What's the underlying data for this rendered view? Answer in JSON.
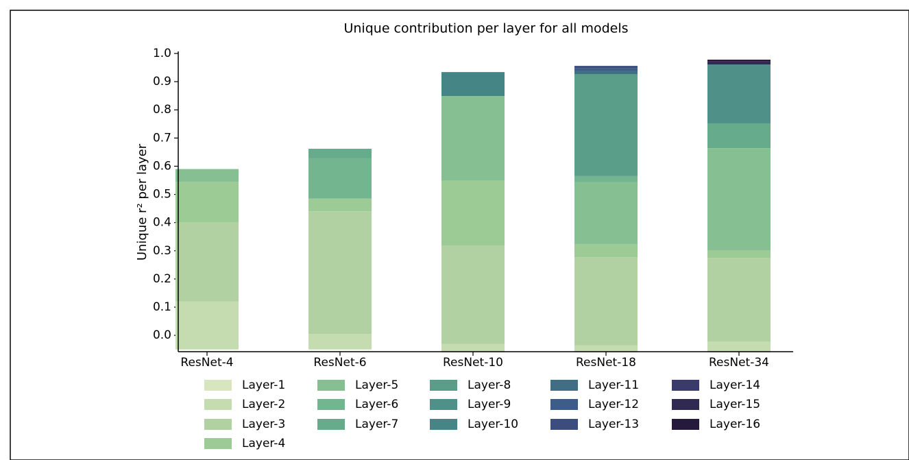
{
  "chart_data": {
    "type": "stacked_bar",
    "title": "Unique contribution per layer for all models",
    "y_label": "Unique r² per layer",
    "categories": [
      "ResNet-4",
      "ResNet-6",
      "ResNet-10",
      "ResNet-18",
      "ResNet-34"
    ],
    "ylim": [
      -0.058,
      1.0
    ],
    "yticks": [
      {
        "value": 0,
        "label": "0.0"
      },
      0.1,
      0.2,
      0.3,
      0.4,
      0.5,
      0.6,
      0.7,
      0.8,
      0.9,
      {
        "value": 1,
        "label": "1.0"
      }
    ],
    "series": [
      {
        "name": "Layer-1",
        "color": "#d8e6c0",
        "values": [
          -0.05,
          -0.05,
          -0.06,
          -0.06,
          -0.06
        ]
      },
      {
        "name": "Layer-2",
        "color": "#c5dcb0",
        "values": [
          0.17,
          0.055,
          0.03,
          0.025,
          0.038
        ]
      },
      {
        "name": "Layer-3",
        "color": "#b1d1a2",
        "values": [
          0.28,
          0.435,
          0.348,
          0.312,
          0.297
        ]
      },
      {
        "name": "Layer-4",
        "color": "#9ccb96",
        "values": [
          0.145,
          0.045,
          0.23,
          0.047,
          0.027
        ]
      },
      {
        "name": "Layer-5",
        "color": "#86c092",
        "values": [
          0.045,
          0,
          0.301,
          0.219,
          0.362
        ]
      },
      {
        "name": "Layer-6",
        "color": "#73b58e",
        "values": [
          0,
          0.143,
          0,
          0.022,
          0
        ]
      },
      {
        "name": "Layer-7",
        "color": "#66ab8b",
        "values": [
          0,
          0.034,
          0,
          0,
          0.088
        ]
      },
      {
        "name": "Layer-8",
        "color": "#5a9e89",
        "values": [
          0,
          0,
          0,
          0.362,
          0
        ]
      },
      {
        "name": "Layer-9",
        "color": "#4f9188",
        "values": [
          0,
          0,
          0,
          0,
          0.209
        ]
      },
      {
        "name": "Layer-10",
        "color": "#468586",
        "values": [
          0,
          0,
          0.085,
          0,
          0
        ]
      },
      {
        "name": "Layer-11",
        "color": "#3f6e85",
        "values": [
          0,
          0,
          0,
          0.01,
          0
        ]
      },
      {
        "name": "Layer-12",
        "color": "#3c5d87",
        "values": [
          0,
          0,
          0,
          0.01,
          0
        ]
      },
      {
        "name": "Layer-13",
        "color": "#3d4c7e",
        "values": [
          0,
          0,
          0,
          0.009,
          0
        ]
      },
      {
        "name": "Layer-14",
        "color": "#3a3a6c",
        "values": [
          0,
          0,
          0,
          0,
          0
        ]
      },
      {
        "name": "Layer-15",
        "color": "#302a53",
        "values": [
          0,
          0,
          0,
          0,
          0.012
        ]
      },
      {
        "name": "Layer-16",
        "color": "#25193c",
        "values": [
          0,
          0,
          0,
          0,
          0.005
        ]
      }
    ]
  }
}
